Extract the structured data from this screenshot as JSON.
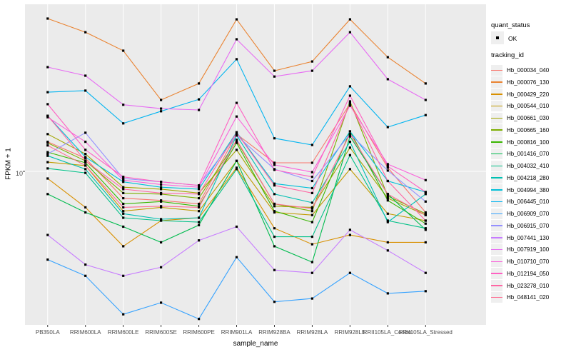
{
  "chart_data": {
    "type": "line",
    "xlabel": "sample_name",
    "ylabel": "FPKM + 1",
    "y_scale": "log10",
    "y_major_ticks": [
      10
    ],
    "ylim": [
      1.35,
      95
    ],
    "grid": "major-only",
    "panel_bg": "#EBEBEB",
    "grid_color": "#FFFFFF",
    "point_color": "#000000",
    "categories": [
      "PB350LA",
      "RRIM600LA",
      "RRIM600LE",
      "RRIM600SE",
      "RRIM600PE",
      "RRIM901LA",
      "RRIM928BA",
      "RRIM928LA",
      "RRIM928LE",
      "RRII105LA_Control",
      "RRII105LA_Stressed"
    ],
    "series": [
      {
        "name": "Hb_000034_040",
        "color": "#F8766D",
        "values": [
          14.8,
          11.9,
          7.0,
          6.8,
          6.5,
          16.4,
          11.2,
          11.2,
          24.6,
          10.5,
          5.8
        ]
      },
      {
        "name": "Hb_000076_130",
        "color": "#EA8331",
        "values": [
          76.0,
          63.4,
          49.6,
          25.8,
          32.1,
          75.2,
          38.0,
          43.0,
          75.2,
          45.5,
          32.1
        ]
      },
      {
        "name": "Hb_000429_220",
        "color": "#D89000",
        "values": [
          9.1,
          6.2,
          3.7,
          5.2,
          5.4,
          10.5,
          4.7,
          3.8,
          4.3,
          3.9,
          3.9
        ]
      },
      {
        "name": "Hb_000544_010",
        "color": "#C09B00",
        "values": [
          11.3,
          10.8,
          5.9,
          6.2,
          5.9,
          11.5,
          5.8,
          5.6,
          10.3,
          5.7,
          5.2
        ]
      },
      {
        "name": "Hb_000661_030",
        "color": "#A3A500",
        "values": [
          16.4,
          12.6,
          8.1,
          7.9,
          7.5,
          13.3,
          6.3,
          6.2,
          13.7,
          7.0,
          5.6
        ]
      },
      {
        "name": "Hb_000665_160",
        "color": "#7CAE00",
        "values": [
          14.6,
          11.5,
          7.5,
          7.4,
          7.0,
          15.0,
          6.5,
          5.9,
          25.3,
          7.2,
          5.7
        ]
      },
      {
        "name": "Hb_000816_100",
        "color": "#39B600",
        "values": [
          12.9,
          11.2,
          6.5,
          6.7,
          6.3,
          14.6,
          5.9,
          5.1,
          17.0,
          6.8,
          5.0
        ]
      },
      {
        "name": "Hb_001416_070",
        "color": "#00BB4E",
        "values": [
          7.4,
          5.8,
          4.8,
          3.9,
          4.9,
          11.5,
          3.7,
          3.0,
          15.9,
          7.4,
          4.6
        ]
      },
      {
        "name": "Hb_004032_410",
        "color": "#00C087",
        "values": [
          10.4,
          9.8,
          5.4,
          5.2,
          5.1,
          10.3,
          4.2,
          4.2,
          12.4,
          5.2,
          4.7
        ]
      },
      {
        "name": "Hb_004218_280",
        "color": "#00C0B2",
        "values": [
          12.3,
          10.3,
          5.7,
          5.3,
          5.4,
          16.1,
          7.4,
          6.6,
          14.8,
          5.1,
          7.4
        ]
      },
      {
        "name": "Hb_004994_380",
        "color": "#00BFD8",
        "values": [
          20.9,
          12.1,
          8.7,
          8.1,
          7.9,
          16.8,
          8.5,
          8.0,
          17.0,
          8.8,
          7.6
        ]
      },
      {
        "name": "Hb_006445_010",
        "color": "#00B4F0",
        "values": [
          28.6,
          29.2,
          18.9,
          22.2,
          26.0,
          44.3,
          15.5,
          14.2,
          30.9,
          18.0,
          21.1
        ]
      },
      {
        "name": "Hb_006909_070",
        "color": "#35A2FF",
        "values": [
          3.1,
          2.5,
          1.5,
          1.75,
          1.41,
          3.2,
          1.77,
          1.85,
          2.6,
          1.98,
          2.04
        ]
      },
      {
        "name": "Hb_006915_070",
        "color": "#9590FF",
        "values": [
          12.6,
          16.7,
          9.1,
          8.7,
          8.3,
          16.1,
          10.3,
          8.8,
          16.4,
          10.1,
          6.7
        ]
      },
      {
        "name": "Hb_007441_130",
        "color": "#C77CFF",
        "values": [
          4.3,
          2.9,
          2.5,
          2.8,
          4.0,
          4.8,
          2.7,
          2.6,
          4.6,
          3.5,
          2.6
        ]
      },
      {
        "name": "Hb_007919_100",
        "color": "#E76BF3",
        "values": [
          39.9,
          35.6,
          24.2,
          23.0,
          22.6,
          57.7,
          35.2,
          38.0,
          63.4,
          34.0,
          25.8
        ]
      },
      {
        "name": "Hb_010710_070",
        "color": "#FA62DB",
        "values": [
          20.5,
          14.8,
          8.9,
          8.4,
          8.1,
          20.7,
          10.9,
          9.9,
          23.9,
          11.0,
          8.9
        ]
      },
      {
        "name": "Hb_012194_050",
        "color": "#FF61C3",
        "values": [
          24.4,
          13.3,
          9.3,
          8.7,
          8.3,
          24.8,
          10.2,
          9.3,
          27.3,
          10.7,
          7.6
        ]
      },
      {
        "name": "Hb_023278_010",
        "color": "#FF67A4",
        "values": [
          20.9,
          11.5,
          7.9,
          7.5,
          7.4,
          16.7,
          8.3,
          7.5,
          24.6,
          8.8,
          5.2
        ]
      },
      {
        "name": "Hb_048141_020",
        "color": "#FF6C91",
        "values": [
          14.1,
          10.8,
          6.2,
          6.3,
          6.2,
          15.2,
          6.5,
          6.1,
          16.4,
          7.4,
          5.6
        ]
      }
    ],
    "legends": {
      "quant_status": {
        "title": "quant_status",
        "items": [
          {
            "label": "OK",
            "symbol": "point"
          }
        ]
      },
      "tracking_id": {
        "title": "tracking_id"
      }
    }
  }
}
